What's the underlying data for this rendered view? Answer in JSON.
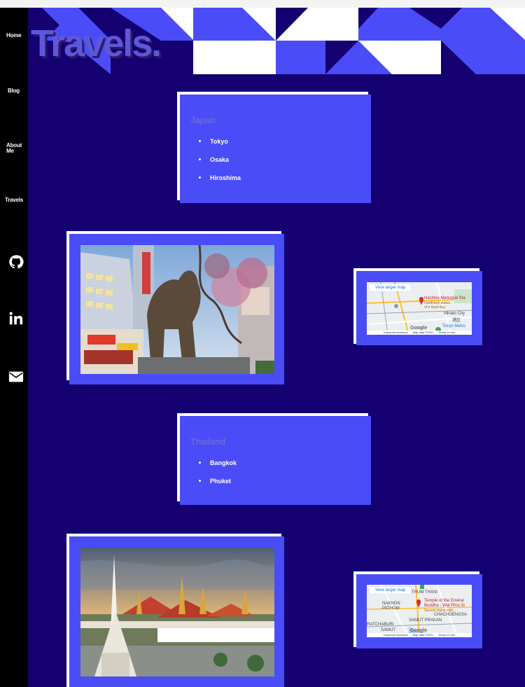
{
  "nav": {
    "home": "Home",
    "blog": "Blog",
    "about_line1": "About",
    "about_line2": "Me",
    "travels": "Travels"
  },
  "social": [
    "github-icon",
    "linkedin-icon",
    "mail-icon"
  ],
  "header": {
    "title": "Travels."
  },
  "colors": {
    "page_bg": "#150071",
    "card": "#4a4cf8",
    "sidebar": "#000000",
    "title": "#5f57d9"
  },
  "countries": [
    {
      "name": "Japan",
      "cities": [
        "Tokyo",
        "Osaka",
        "Hiroshima"
      ],
      "map": {
        "button": "View larger map",
        "pin_title": "Hachiko Memorial Sta",
        "pin_sub1": "Landmark statue",
        "pin_sub2": "of a loyal dog",
        "place1": "Minato City",
        "place2": "港区",
        "place3": "Tokyo Metro",
        "logo": "Google",
        "foot1": "Keyboard shortcuts",
        "foot2": "Map data ©2021",
        "foot3": "Terms of Use"
      }
    },
    {
      "name": "Thailand",
      "cities": [
        "Bangkok",
        "Phuket"
      ],
      "map": {
        "button": "View larger map",
        "pin_title": "Temple of the Emeral",
        "pin_title2": "Buddha - Wat Phra Si",
        "pin_sub1": "Sacred shrine with...",
        "place1": "THUM THANI",
        "place2": "NAKHON",
        "place3": "PATHOM",
        "place4": "CHACHOENGSA",
        "place5": "SAMUT PRAKAN",
        "place6": "RATCHABURI",
        "place7": "SAMUT",
        "logo": "Google",
        "foot1": "Keyboard shortcuts",
        "foot2": "Map data ©2021",
        "foot3": "Terms of Use"
      }
    }
  ]
}
